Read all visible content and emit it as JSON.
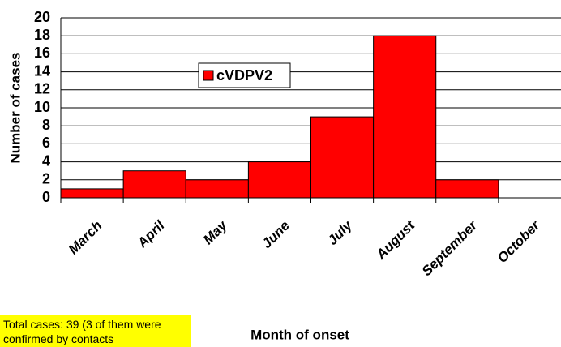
{
  "chart_data": {
    "type": "bar",
    "categories": [
      "March",
      "April",
      "May",
      "June",
      "July",
      "August",
      "September",
      "October"
    ],
    "series": [
      {
        "name": "cVDPV2",
        "color": "#ff0000",
        "values": [
          1,
          3,
          2,
          4,
          9,
          18,
          2,
          0
        ]
      }
    ],
    "ylim": [
      0,
      20
    ],
    "yticks": [
      0,
      2,
      4,
      6,
      8,
      10,
      12,
      14,
      16,
      18,
      20
    ],
    "grid": true,
    "ylabel": "Number of cases",
    "xlabel": "Month of onset",
    "annotation": "Total cases: 39 (3 of them were confirmed by contacts"
  }
}
